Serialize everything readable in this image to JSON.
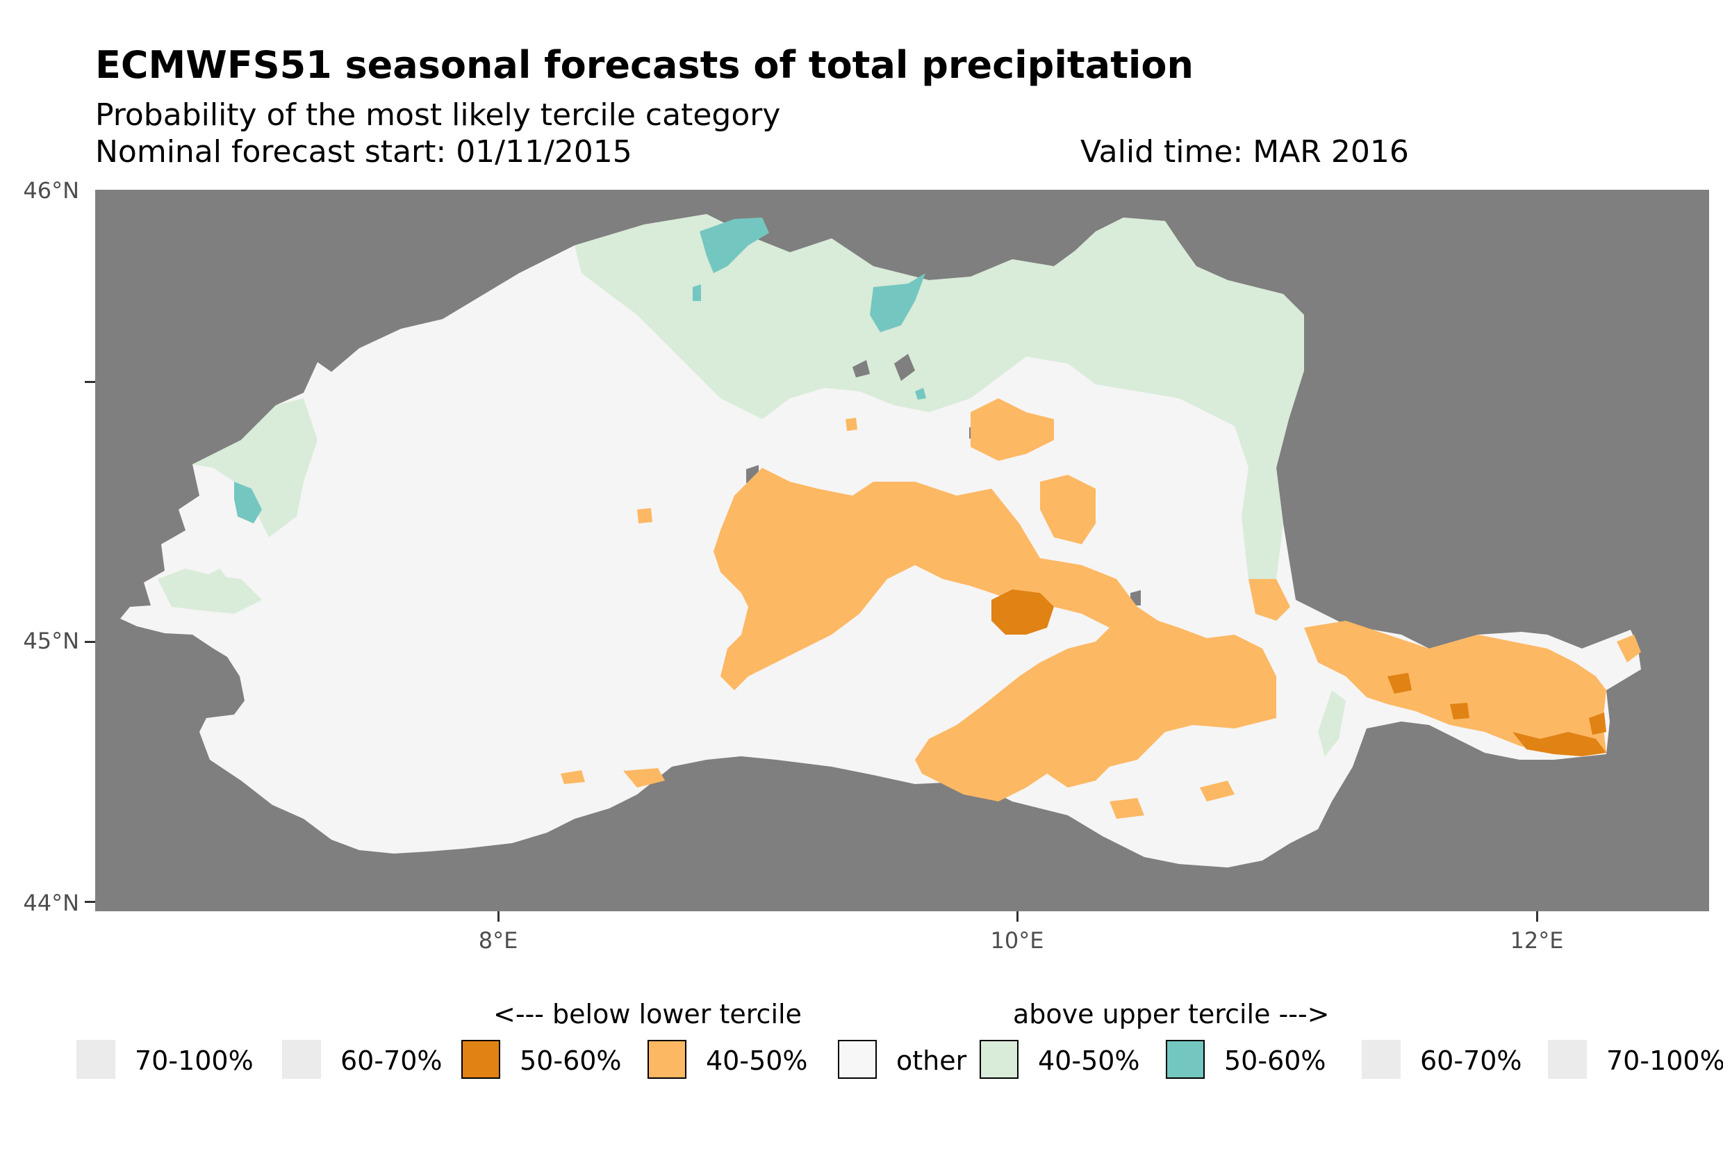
{
  "title": "ECMWFS51 seasonal forecasts of total precipitation",
  "subtitle": "Probability of the most likely tercile category",
  "forecast_start": "Nominal forecast start: 01/11/2015",
  "valid_time": "Valid time: MAR 2016",
  "axes": {
    "y_ticks": [
      "46°N",
      "45°N",
      "44°N"
    ],
    "x_ticks": [
      "8°E",
      "10°E",
      "12°E"
    ]
  },
  "legend": {
    "below_header": "<--- below lower tercile",
    "above_header": "above upper tercile --->",
    "items": [
      {
        "label": "70-100%",
        "color": "#ebebeb",
        "border": false
      },
      {
        "label": "60-70%",
        "color": "#ebebeb",
        "border": false
      },
      {
        "label": "50-60%",
        "color": "#e08214",
        "border": true
      },
      {
        "label": "40-50%",
        "color": "#fdb863",
        "border": true
      },
      {
        "label": "other",
        "color": "#f7f7f7",
        "border": true
      },
      {
        "label": "40-50%",
        "color": "#d9ebd9",
        "border": true
      },
      {
        "label": "50-60%",
        "color": "#74c7c0",
        "border": true
      },
      {
        "label": "60-70%",
        "color": "#ebebeb",
        "border": false
      },
      {
        "label": "70-100%",
        "color": "#ebebeb",
        "border": false
      }
    ]
  },
  "colors": {
    "background": "#7f7f7f",
    "other": "#f5f5f5",
    "below_40_50": "#fdb863",
    "below_50_60": "#e08214",
    "above_40_50": "#d9ebd9",
    "above_50_60": "#74c7c0"
  }
}
